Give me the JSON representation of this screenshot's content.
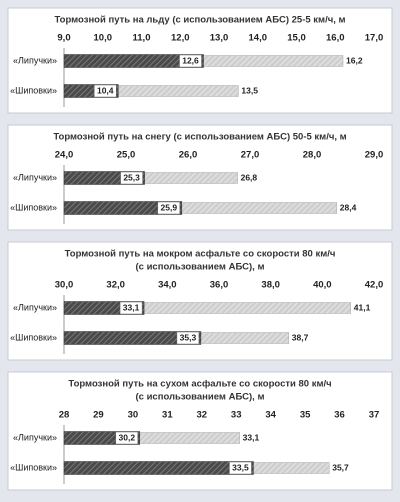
{
  "chart_data": [
    {
      "type": "bar",
      "orientation": "horizontal",
      "overlap": true,
      "title": "Тормозной путь на льду (с использованием АБС) 25-5 км/ч, м",
      "categories": [
        "«Липучки»",
        "«Шиповки»"
      ],
      "xlim": [
        9.0,
        17.0
      ],
      "xticks": [
        {
          "value": 9,
          "label": "9,0"
        },
        {
          "value": 10,
          "label": "10,0"
        },
        {
          "value": 11,
          "label": "11,0"
        },
        {
          "value": 12,
          "label": "12,0"
        },
        {
          "value": 13,
          "label": "13,0"
        },
        {
          "value": 14,
          "label": "14,0"
        },
        {
          "value": 15,
          "label": "15,0"
        },
        {
          "value": 16,
          "label": "16,0"
        },
        {
          "value": 17,
          "label": "17,0"
        }
      ],
      "series": [
        {
          "color": "#4a4a4a",
          "values": [
            12.6,
            10.4
          ],
          "value_labels": [
            "12,6",
            "10,4"
          ]
        },
        {
          "color": "#cfcfcf",
          "values": [
            16.2,
            13.5
          ],
          "value_labels": [
            "16,2",
            "13,5"
          ]
        }
      ]
    },
    {
      "type": "bar",
      "orientation": "horizontal",
      "overlap": true,
      "title": "Тормозной путь на снегу (с использованием АБС) 50-5 км/ч, м",
      "categories": [
        "«Липучки»",
        "«Шиповки»"
      ],
      "xlim": [
        24.0,
        29.0
      ],
      "xticks": [
        {
          "value": 24,
          "label": "24,0"
        },
        {
          "value": 25,
          "label": "25,0"
        },
        {
          "value": 26,
          "label": "26,0"
        },
        {
          "value": 27,
          "label": "27,0"
        },
        {
          "value": 28,
          "label": "28,0"
        },
        {
          "value": 29,
          "label": "29,0"
        }
      ],
      "series": [
        {
          "color": "#4a4a4a",
          "values": [
            25.3,
            25.9
          ],
          "value_labels": [
            "25,3",
            "25,9"
          ]
        },
        {
          "color": "#cfcfcf",
          "values": [
            26.8,
            28.4
          ],
          "value_labels": [
            "26,8",
            "28,4"
          ]
        }
      ]
    },
    {
      "type": "bar",
      "orientation": "horizontal",
      "overlap": true,
      "title": [
        "Тормозной путь на мокром асфальте со скорости 80 км/ч",
        "(с использованием АБС), м"
      ],
      "categories": [
        "«Липучки»",
        "«Шиповки»"
      ],
      "xlim": [
        30.0,
        42.0
      ],
      "xticks": [
        {
          "value": 30,
          "label": "30,0"
        },
        {
          "value": 32,
          "label": "32,0"
        },
        {
          "value": 34,
          "label": "34,0"
        },
        {
          "value": 36,
          "label": "36,0"
        },
        {
          "value": 38,
          "label": "38,0"
        },
        {
          "value": 40,
          "label": "40,0"
        },
        {
          "value": 42,
          "label": "42,0"
        }
      ],
      "series": [
        {
          "color": "#4a4a4a",
          "values": [
            33.1,
            35.3
          ],
          "value_labels": [
            "33,1",
            "35,3"
          ]
        },
        {
          "color": "#cfcfcf",
          "values": [
            41.1,
            38.7
          ],
          "value_labels": [
            "41,1",
            "38,7"
          ]
        }
      ]
    },
    {
      "type": "bar",
      "orientation": "horizontal",
      "overlap": true,
      "title": [
        "Тормозной путь на сухом асфальте со скорости 80 км/ч",
        "(с использованием АБС), м"
      ],
      "categories": [
        "«Липучки»",
        "«Шиповки»"
      ],
      "xlim": [
        28,
        37
      ],
      "xticks": [
        28,
        29,
        30,
        31,
        32,
        33,
        34,
        35,
        36,
        37
      ],
      "series": [
        {
          "color": "#4a4a4a",
          "values": [
            30.2,
            33.5
          ],
          "value_labels": [
            "30,2",
            "33,5"
          ]
        },
        {
          "color": "#cfcfcf",
          "values": [
            33.1,
            35.7
          ],
          "value_labels": [
            "33,1",
            "35,7"
          ]
        }
      ]
    }
  ]
}
